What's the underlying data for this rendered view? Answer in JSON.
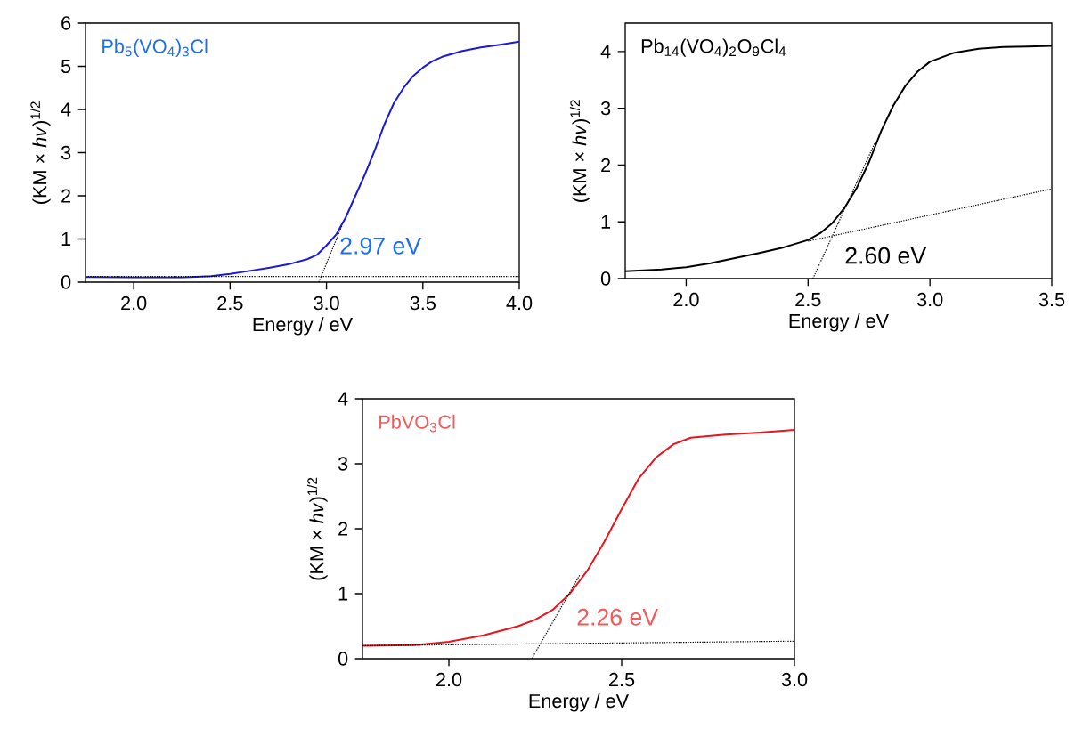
{
  "chart_data": [
    {
      "type": "line",
      "title": "Pb$_{5}$(VO$_{4}$)$_{3}$Cl",
      "xlabel": "Energy  / eV",
      "ylabel": "(KM × *hv*)$^{1/2}$",
      "line_style": "solid",
      "xlim": [
        1.75,
        4.0
      ],
      "ylim": [
        0,
        6
      ],
      "xticks": [
        {
          "value": 2.0,
          "label": "2.0"
        },
        {
          "value": 2.5,
          "label": "2.5"
        },
        {
          "value": 3.0,
          "label": "3.0"
        },
        {
          "value": 3.5,
          "label": "3.5"
        },
        {
          "value": 4.0,
          "label": "4.0"
        }
      ],
      "yticks": [
        0,
        1,
        2,
        3,
        4,
        5,
        6
      ],
      "annotations": [
        "2.97 eV"
      ],
      "series": [
        {
          "color": "#1a1ad8",
          "x": [
            1.75,
            2.0,
            2.25,
            2.4,
            2.5,
            2.6,
            2.7,
            2.8,
            2.9,
            2.95,
            3.0,
            3.05,
            3.1,
            3.15,
            3.2,
            3.25,
            3.3,
            3.35,
            3.4,
            3.45,
            3.5,
            3.55,
            3.6,
            3.7,
            3.8,
            3.9,
            4.0
          ],
          "values": [
            0.12,
            0.11,
            0.11,
            0.14,
            0.19,
            0.26,
            0.33,
            0.41,
            0.53,
            0.63,
            0.85,
            1.1,
            1.5,
            2.0,
            2.5,
            3.05,
            3.65,
            4.15,
            4.5,
            4.78,
            4.97,
            5.12,
            5.22,
            5.35,
            5.44,
            5.5,
            5.57
          ]
        },
        {
          "type": "line",
          "line_style": "dotted",
          "color": "#000000",
          "x": [
            1.75,
            4.0
          ],
          "values": [
            0.13,
            0.13
          ]
        },
        {
          "type": "line",
          "line_style": "dotted",
          "color": "#000000",
          "x": [
            2.96,
            3.08
          ],
          "values": [
            0,
            1.3
          ]
        }
      ]
    },
    {
      "type": "line",
      "title": "Pb$_{14}$(VO$_{4}$)$_{2}$O$_{9}$Cl$_{4}$",
      "xlabel": "Energy  / eV",
      "ylabel": "(KM × *hv*)$^{1/2}$",
      "line_style": "solid",
      "xlim": [
        1.75,
        3.5
      ],
      "ylim": [
        0,
        4.5
      ],
      "xticks": [
        {
          "value": 2.0,
          "label": "2.0"
        },
        {
          "value": 2.5,
          "label": "2.5"
        },
        {
          "value": 3.0,
          "label": "3.0"
        },
        {
          "value": 3.5,
          "label": "3.5"
        }
      ],
      "yticks": [
        0,
        1,
        2,
        3,
        4
      ],
      "annotations": [
        "2.60 eV"
      ],
      "series": [
        {
          "color": "#000000",
          "x": [
            1.75,
            1.9,
            2.0,
            2.1,
            2.2,
            2.3,
            2.4,
            2.5,
            2.55,
            2.6,
            2.65,
            2.7,
            2.75,
            2.8,
            2.85,
            2.9,
            2.95,
            3.0,
            3.1,
            3.2,
            3.3,
            3.4,
            3.5
          ],
          "values": [
            0.13,
            0.16,
            0.2,
            0.27,
            0.36,
            0.45,
            0.55,
            0.68,
            0.8,
            0.98,
            1.25,
            1.6,
            2.05,
            2.6,
            3.05,
            3.4,
            3.65,
            3.82,
            3.98,
            4.05,
            4.08,
            4.09,
            4.1
          ]
        },
        {
          "type": "line",
          "line_style": "dotted",
          "color": "#000000",
          "x": [
            2.5,
            3.5
          ],
          "values": [
            0.66,
            1.58
          ]
        },
        {
          "type": "line",
          "line_style": "dotted",
          "color": "#000000",
          "x": [
            2.52,
            2.775
          ],
          "values": [
            0,
            2.4
          ]
        }
      ]
    },
    {
      "type": "line",
      "title": "PbVO$_{3}$Cl",
      "xlabel": "Energy  / eV",
      "ylabel": "(KM × *hv*)$^{1/2}$",
      "line_style": "solid",
      "xlim": [
        1.75,
        3.0
      ],
      "ylim": [
        0,
        4
      ],
      "xticks": [
        {
          "value": 2.0,
          "label": "2.0"
        },
        {
          "value": 2.5,
          "label": "2.5"
        },
        {
          "value": 3.0,
          "label": "3.0"
        }
      ],
      "yticks": [
        0,
        1,
        2,
        3,
        4
      ],
      "annotations": [
        "2.26 eV"
      ],
      "series": [
        {
          "color": "#e8141e",
          "x": [
            1.75,
            1.9,
            2.0,
            2.1,
            2.2,
            2.25,
            2.3,
            2.35,
            2.4,
            2.45,
            2.5,
            2.55,
            2.6,
            2.65,
            2.7,
            2.8,
            2.9,
            3.0
          ],
          "values": [
            0.2,
            0.21,
            0.26,
            0.36,
            0.5,
            0.6,
            0.75,
            1.0,
            1.35,
            1.8,
            2.3,
            2.78,
            3.1,
            3.3,
            3.4,
            3.45,
            3.48,
            3.52
          ]
        },
        {
          "type": "line",
          "line_style": "dotted",
          "color": "#000000",
          "x": [
            1.75,
            3.0
          ],
          "values": [
            0.2,
            0.27
          ]
        },
        {
          "type": "line",
          "line_style": "dotted",
          "color": "#000000",
          "x": [
            2.24,
            2.38
          ],
          "values": [
            0,
            1.3
          ]
        }
      ]
    }
  ]
}
